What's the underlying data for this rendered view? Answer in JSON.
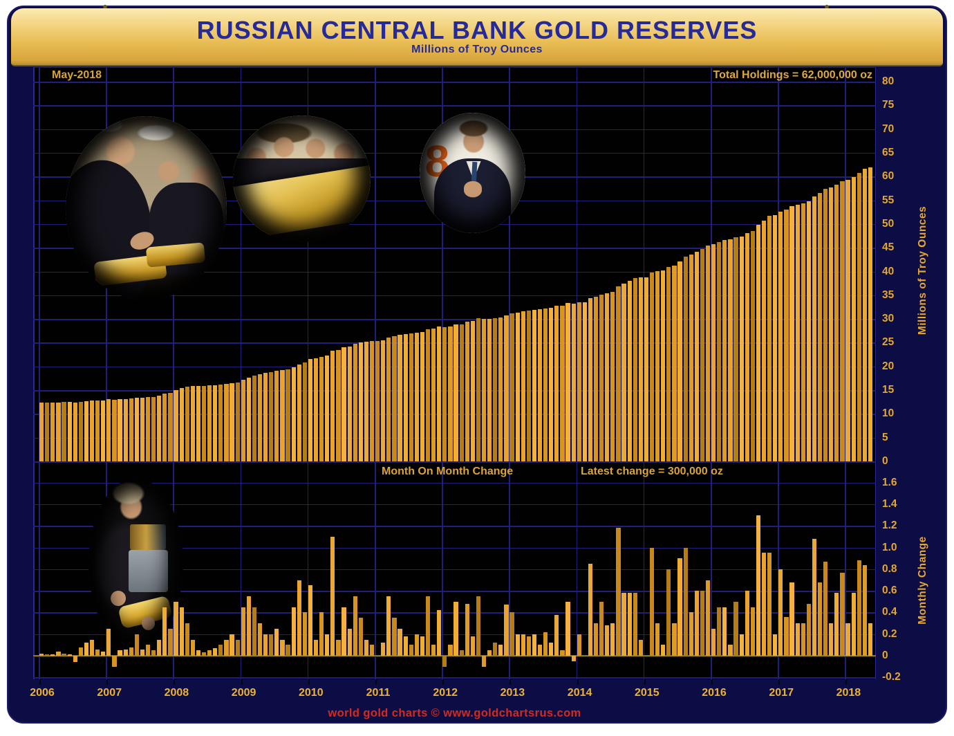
{
  "header": {
    "title": "RUSSIAN CENTRAL BANK GOLD RESERVES",
    "subtitle": "Millions of Troy Ounces"
  },
  "icons": {
    "emblem": "double-headed-eagle"
  },
  "top_chart": {
    "period_label": "May-2018",
    "holdings_label": "Total Holdings = 62,000,000 oz",
    "axis_title": "Millions of Troy Ounces"
  },
  "bottom_chart": {
    "title": "Month On Month Change",
    "latest_label": "Latest change = 300,000 oz",
    "axis_title": "Monthly Change"
  },
  "footer": {
    "credit": "world gold charts © www.goldchartsrus.com"
  },
  "photos": {
    "badge_digit": "8",
    "items": [
      "officials-inspecting-gold-bars-in-vault",
      "men-presenting-large-gold-bar",
      "official-thumbs-up",
      "putin-holding-gold-bar"
    ]
  },
  "colors": {
    "panel_navy": "#0d0d46",
    "plot_black": "#010102",
    "grid_blue": "#20207c",
    "bar_gold": "#eba32d",
    "label_gold": "#e6a72e",
    "title_blue": "#262a96",
    "footer_red": "#d42a1e",
    "header_gold": "#e9bd55",
    "zero_line_olive": "#8a7430"
  },
  "chart_data": [
    {
      "type": "bar",
      "name": "total_gold_reserves",
      "title": "Russian Central Bank Gold Reserves",
      "ylabel": "Millions of Troy Ounces",
      "start_month": "2006-01",
      "end_month": "2018-05",
      "ylim": [
        0,
        80
      ],
      "yticks": [
        80,
        75,
        70,
        65,
        60,
        55,
        50,
        45,
        40,
        35,
        30,
        25,
        20,
        15,
        10,
        5,
        0
      ],
      "grid": true,
      "values": [
        12.4,
        12.41,
        12.42,
        12.46,
        12.48,
        12.49,
        12.43,
        12.51,
        12.63,
        12.78,
        12.84,
        12.88,
        13.13,
        13.03,
        13.08,
        13.14,
        13.22,
        13.42,
        13.48,
        13.58,
        13.63,
        13.78,
        14.23,
        14.48,
        14.98,
        15.43,
        15.73,
        15.88,
        15.93,
        15.96,
        16.01,
        16.08,
        16.18,
        16.33,
        16.53,
        16.68,
        17.13,
        17.68,
        18.13,
        18.43,
        18.63,
        18.83,
        19.08,
        19.23,
        19.33,
        19.78,
        20.48,
        20.88,
        21.53,
        21.68,
        22.08,
        22.28,
        23.38,
        23.53,
        23.98,
        24.23,
        24.78,
        25.13,
        25.28,
        25.38,
        25.38,
        25.5,
        26.05,
        26.4,
        26.65,
        26.83,
        26.93,
        27.13,
        27.31,
        27.86,
        27.96,
        28.38,
        28.28,
        28.38,
        28.88,
        28.93,
        29.41,
        29.59,
        30.14,
        30.04,
        30.09,
        30.21,
        30.31,
        30.78,
        31.18,
        31.38,
        31.58,
        31.76,
        31.96,
        32.06,
        32.28,
        32.4,
        32.78,
        32.83,
        33.33,
        33.28,
        33.48,
        33.48,
        34.33,
        34.63,
        35.13,
        35.41,
        35.71,
        36.89,
        37.47,
        38.05,
        38.63,
        38.78,
        38.78,
        39.78,
        40.08,
        40.18,
        40.98,
        41.28,
        42.18,
        43.18,
        43.58,
        44.18,
        44.78,
        45.48,
        45.73,
        46.18,
        46.63,
        46.73,
        47.23,
        47.43,
        48.03,
        48.48,
        49.78,
        50.73,
        51.68,
        51.88,
        52.68,
        53.04,
        53.72,
        54.02,
        54.32,
        54.8,
        55.88,
        56.56,
        57.43,
        57.73,
        58.31,
        59.08,
        59.38,
        59.96,
        60.84,
        61.68,
        61.98
      ]
    },
    {
      "type": "bar",
      "name": "month_on_month_change",
      "title": "Month On Month Change",
      "ylabel": "Monthly Change",
      "start_month": "2006-01",
      "end_month": "2018-05",
      "ylim": [
        -0.2,
        1.6
      ],
      "ytick_labels": [
        "1.6",
        "1.4",
        "1.2",
        "1.0",
        "0.8",
        "0.6",
        "0.4",
        "0.2",
        "0",
        "-0.2"
      ],
      "grid": true,
      "latest_change": 0.3,
      "values": [
        0.02,
        0.01,
        0.01,
        0.04,
        0.02,
        0.01,
        -0.06,
        0.08,
        0.12,
        0.15,
        0.06,
        0.04,
        0.25,
        -0.1,
        0.05,
        0.06,
        0.08,
        0.2,
        0.06,
        0.1,
        0.05,
        0.15,
        0.45,
        0.25,
        0.5,
        0.45,
        0.3,
        0.15,
        0.05,
        0.03,
        0.05,
        0.07,
        0.1,
        0.15,
        0.2,
        0.15,
        0.45,
        0.55,
        0.45,
        0.3,
        0.2,
        0.2,
        0.25,
        0.15,
        0.1,
        0.45,
        0.7,
        0.4,
        0.65,
        0.15,
        0.4,
        0.2,
        1.1,
        0.15,
        0.45,
        0.25,
        0.55,
        0.35,
        0.15,
        0.1,
        0.0,
        0.12,
        0.55,
        0.35,
        0.25,
        0.18,
        0.1,
        0.2,
        0.18,
        0.55,
        0.1,
        0.42,
        -0.1,
        0.1,
        0.5,
        0.05,
        0.48,
        0.18,
        0.55,
        -0.1,
        0.05,
        0.12,
        0.1,
        0.47,
        0.4,
        0.2,
        0.2,
        0.18,
        0.2,
        0.1,
        0.22,
        0.12,
        0.38,
        0.05,
        0.5,
        -0.05,
        0.2,
        0.0,
        0.85,
        0.3,
        0.5,
        0.28,
        0.3,
        1.18,
        0.58,
        0.58,
        0.58,
        0.15,
        0.0,
        1.0,
        0.3,
        0.1,
        0.8,
        0.3,
        0.9,
        1.0,
        0.4,
        0.6,
        0.6,
        0.7,
        0.25,
        0.45,
        0.45,
        0.1,
        0.5,
        0.2,
        0.6,
        0.45,
        1.3,
        0.95,
        0.95,
        0.2,
        0.8,
        0.36,
        0.68,
        0.3,
        0.3,
        0.48,
        1.08,
        0.68,
        0.87,
        0.3,
        0.58,
        0.77,
        0.3,
        0.58,
        0.88,
        0.84,
        0.3
      ]
    }
  ],
  "x_axis": {
    "years": [
      2006,
      2007,
      2008,
      2009,
      2010,
      2011,
      2012,
      2013,
      2014,
      2015,
      2016,
      2017,
      2018
    ]
  }
}
